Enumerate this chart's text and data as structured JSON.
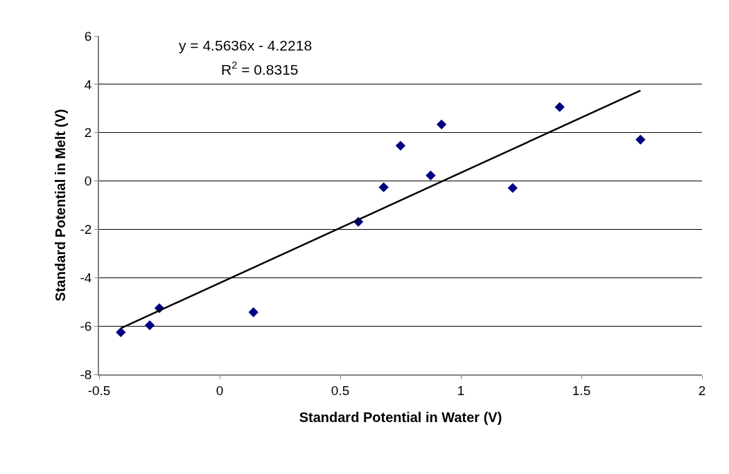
{
  "chart_data": {
    "type": "scatter",
    "xlabel": "Standard Potential in Water (V)",
    "ylabel": "Standard Potential in Melt (V)",
    "annotations": [
      "y = 4.5636x - 4.2218",
      "R$^{2}$ = 0.8315"
    ],
    "series": [
      {
        "color": "#000080",
        "marker": "diamond",
        "x": [
          -0.41,
          -0.29,
          -0.25,
          0.14,
          0.575,
          0.68,
          0.75,
          0.875,
          0.92,
          1.215,
          1.41,
          1.745
        ],
        "values": [
          -6.26,
          -5.97,
          -5.26,
          -5.43,
          -1.69,
          -0.26,
          1.46,
          0.23,
          2.34,
          -0.29,
          3.06,
          1.71
        ]
      },
      {
        "type": "line",
        "color": "#000000",
        "marker": "none",
        "x": [
          -0.41,
          1.745
        ],
        "values": [
          -6.09,
          3.74
        ]
      }
    ],
    "xlim": [
      -0.5,
      2
    ],
    "xticks": [
      -0.5,
      0,
      0.5,
      1,
      1.5,
      2
    ],
    "ylim": [
      -8,
      6
    ],
    "yticks": [
      -8,
      -6,
      -4,
      -2,
      0,
      2,
      4,
      6
    ],
    "grid": "y"
  }
}
